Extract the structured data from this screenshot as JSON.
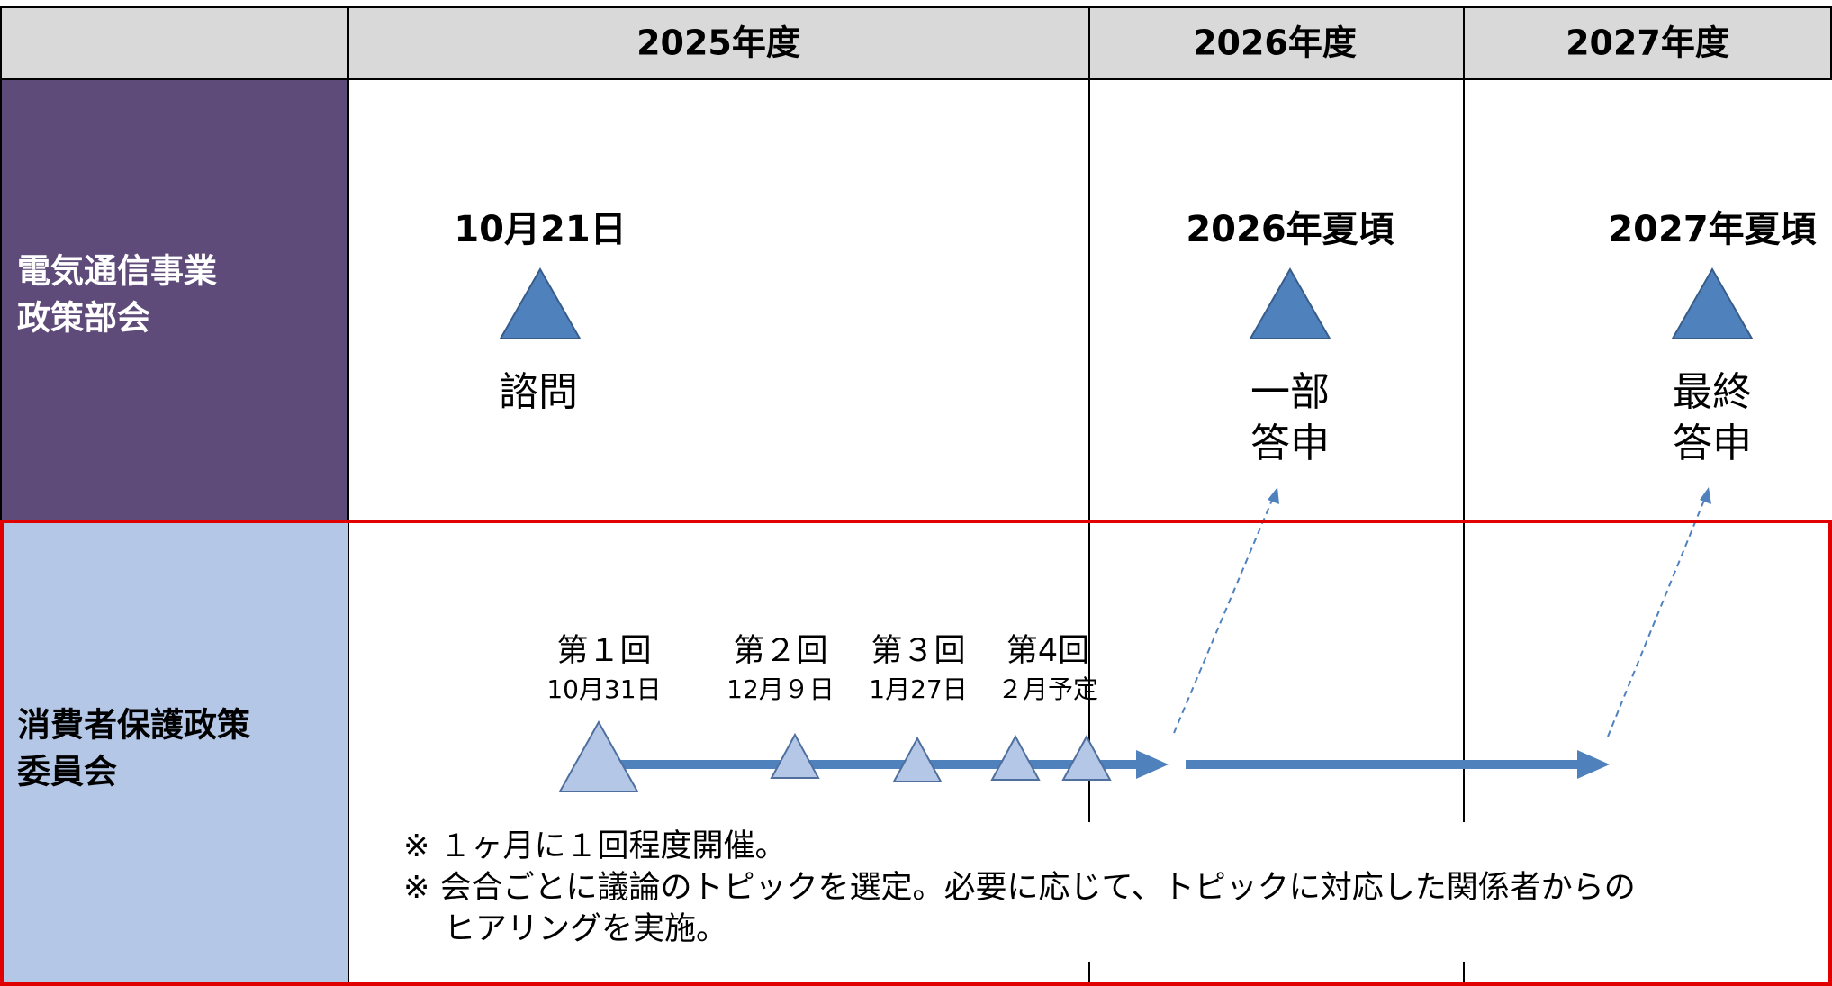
{
  "header": {
    "columns": [
      "2025年度",
      "2026年度",
      "2027年度"
    ]
  },
  "rows": [
    {
      "label": [
        "電気通信事業",
        "政策部会"
      ],
      "milestones": [
        {
          "date": "10月21日",
          "text": [
            "諮問"
          ]
        },
        {
          "date": "2026年夏頃",
          "text": [
            "一部",
            "答申"
          ]
        },
        {
          "date": "2027年夏頃",
          "text": [
            "最終",
            "答申"
          ]
        }
      ]
    },
    {
      "label": [
        "消費者保護政策",
        "委員会"
      ],
      "meetings": [
        {
          "title": "第１回",
          "date": "10月31日"
        },
        {
          "title": "第２回",
          "date": "12月９日"
        },
        {
          "title": "第３回",
          "date": "1月27日"
        },
        {
          "title": "第4回",
          "date": "２月予定"
        }
      ],
      "notes": [
        "※ １ヶ月に１回程度開催。",
        "※ 会合ごとに議論のトピックを選定。必要に応じて、トピックに対応した関係者からの",
        "ヒアリングを実施。"
      ]
    }
  ]
}
